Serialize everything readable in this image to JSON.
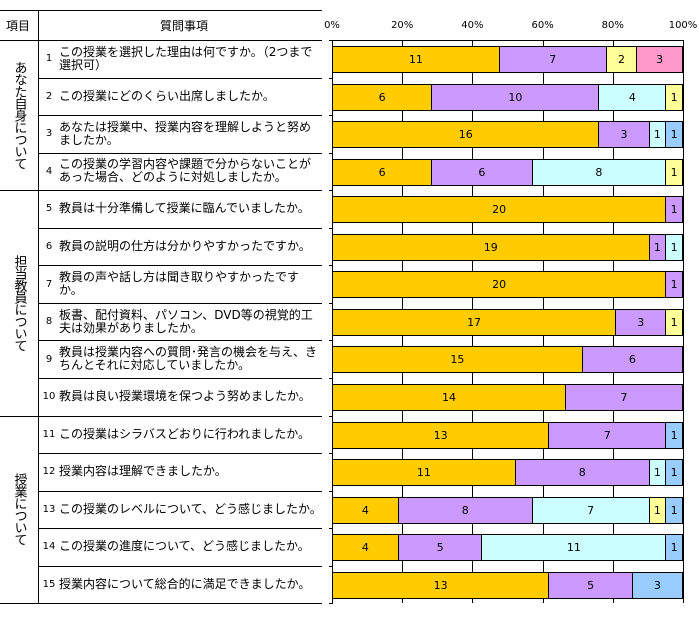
{
  "header": {
    "category": "項目",
    "question": "質問事項"
  },
  "groups": [
    {
      "label": "あなた自身について",
      "rows": [
        0,
        3
      ]
    },
    {
      "label": "担当教員について",
      "rows": [
        4,
        9
      ]
    },
    {
      "label": "授業について",
      "rows": [
        10,
        14
      ]
    }
  ],
  "chart_data": {
    "type": "bar",
    "orientation": "horizontal-stacked-100",
    "xlim": [
      0,
      100
    ],
    "xticks": [
      "0%",
      "20%",
      "40%",
      "60%",
      "80%",
      "100%"
    ],
    "grid": true,
    "colors": {
      "gold": "#FFCC00",
      "lavender": "#CC99FF",
      "cyan": "#CCFFFF",
      "yellow": "#FFFF99",
      "pink": "#FF99CC",
      "blue": "#99CCFF"
    },
    "rows": [
      {
        "num": "1",
        "text": "この授業を選択した理由は何ですか。（2つまで選択可）",
        "segments": [
          {
            "v": 11,
            "c": "gold"
          },
          {
            "v": 7,
            "c": "lavender"
          },
          {
            "v": 2,
            "c": "yellow"
          },
          {
            "v": 3,
            "c": "pink"
          }
        ]
      },
      {
        "num": "2",
        "text": "この授業にどのくらい出席しましたか。",
        "segments": [
          {
            "v": 6,
            "c": "gold"
          },
          {
            "v": 10,
            "c": "lavender"
          },
          {
            "v": 4,
            "c": "cyan"
          },
          {
            "v": 1,
            "c": "yellow"
          }
        ]
      },
      {
        "num": "3",
        "text": "あなたは授業中、授業内容を理解しようと努めましたか。",
        "segments": [
          {
            "v": 16,
            "c": "gold"
          },
          {
            "v": 3,
            "c": "lavender"
          },
          {
            "v": 1,
            "c": "cyan"
          },
          {
            "v": 1,
            "c": "blue"
          }
        ]
      },
      {
        "num": "4",
        "text": "この授業の学習内容や課題で分からないことがあった場合、どのように対処しましたか。",
        "segments": [
          {
            "v": 6,
            "c": "gold"
          },
          {
            "v": 6,
            "c": "lavender"
          },
          {
            "v": 8,
            "c": "cyan"
          },
          {
            "v": 1,
            "c": "yellow"
          }
        ]
      },
      {
        "num": "5",
        "text": "教員は十分準備して授業に臨んでいましたか。",
        "segments": [
          {
            "v": 20,
            "c": "gold"
          },
          {
            "v": 1,
            "c": "lavender"
          }
        ]
      },
      {
        "num": "6",
        "text": "教員の説明の仕方は分かりやすかったですか。",
        "segments": [
          {
            "v": 19,
            "c": "gold"
          },
          {
            "v": 1,
            "c": "lavender"
          },
          {
            "v": 1,
            "c": "cyan"
          }
        ]
      },
      {
        "num": "7",
        "text": "教員の声や話し方は聞き取りやすかったですか。",
        "segments": [
          {
            "v": 20,
            "c": "gold"
          },
          {
            "v": 1,
            "c": "lavender"
          }
        ]
      },
      {
        "num": "8",
        "text": "板書、配付資料、パソコン、DVD等の視覚的工夫は効果がありましたか。",
        "segments": [
          {
            "v": 17,
            "c": "gold"
          },
          {
            "v": 3,
            "c": "lavender"
          },
          {
            "v": 1,
            "c": "yellow"
          }
        ]
      },
      {
        "num": "9",
        "text": "教員は授業内容への質問･発言の機会を与え、きちんとそれに対応していましたか。",
        "segments": [
          {
            "v": 15,
            "c": "gold"
          },
          {
            "v": 6,
            "c": "lavender"
          }
        ]
      },
      {
        "num": "10",
        "text": "教員は良い授業環境を保つよう努めましたか。",
        "segments": [
          {
            "v": 14,
            "c": "gold"
          },
          {
            "v": 7,
            "c": "lavender"
          }
        ]
      },
      {
        "num": "11",
        "text": "この授業はシラバスどおりに行われましたか。",
        "segments": [
          {
            "v": 13,
            "c": "gold"
          },
          {
            "v": 7,
            "c": "lavender"
          },
          {
            "v": 1,
            "c": "blue"
          }
        ]
      },
      {
        "num": "12",
        "text": "授業内容は理解できましたか。",
        "segments": [
          {
            "v": 11,
            "c": "gold"
          },
          {
            "v": 8,
            "c": "lavender"
          },
          {
            "v": 1,
            "c": "cyan"
          },
          {
            "v": 1,
            "c": "blue"
          }
        ]
      },
      {
        "num": "13",
        "text": "この授業のレベルについて、どう感じましたか。",
        "segments": [
          {
            "v": 4,
            "c": "gold"
          },
          {
            "v": 8,
            "c": "lavender"
          },
          {
            "v": 7,
            "c": "cyan"
          },
          {
            "v": 1,
            "c": "yellow"
          },
          {
            "v": 1,
            "c": "blue"
          }
        ]
      },
      {
        "num": "14",
        "text": "この授業の進度について、どう感じましたか。",
        "segments": [
          {
            "v": 4,
            "c": "gold"
          },
          {
            "v": 5,
            "c": "lavender"
          },
          {
            "v": 11,
            "c": "cyan"
          },
          {
            "v": 1,
            "c": "blue"
          }
        ]
      },
      {
        "num": "15",
        "text": "授業内容について総合的に満足できましたか。",
        "segments": [
          {
            "v": 13,
            "c": "gold"
          },
          {
            "v": 5,
            "c": "lavender"
          },
          {
            "v": 3,
            "c": "blue"
          }
        ]
      }
    ]
  }
}
